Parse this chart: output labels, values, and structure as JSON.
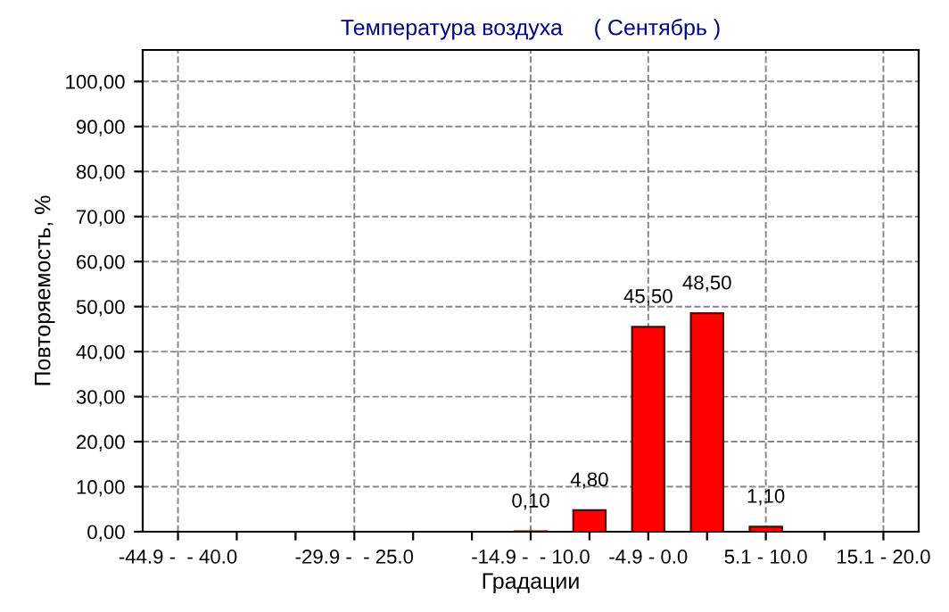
{
  "chart_data": {
    "type": "bar",
    "title": "Температура воздуха     ( Сентябрь )",
    "xlabel": "Градации",
    "ylabel": "Повторяемость, %",
    "categories": [
      "-44.9 -  - 40.0",
      null,
      null,
      "-29.9 -  - 25.0",
      null,
      null,
      "-14.9 -  - 10.0",
      null,
      "-4.9 - 0.0",
      null,
      "5.1 - 10.0",
      null,
      "15.1 - 20.0"
    ],
    "values": [
      0,
      0,
      0,
      0,
      0,
      0,
      0.1,
      4.8,
      45.5,
      48.5,
      1.1,
      0,
      0
    ],
    "value_labels": [
      null,
      null,
      null,
      null,
      null,
      null,
      "0,10",
      "4,80",
      "45,50",
      "48,50",
      "1,10",
      null,
      null
    ],
    "color": "#ff0000",
    "ylim": [
      0,
      107
    ],
    "yticks": [
      {
        "value": 0,
        "label": "0,00"
      },
      {
        "value": 10,
        "label": "10,00"
      },
      {
        "value": 20,
        "label": "20,00"
      },
      {
        "value": 30,
        "label": "30,00"
      },
      {
        "value": 40,
        "label": "40,00"
      },
      {
        "value": 50,
        "label": "50,00"
      },
      {
        "value": 60,
        "label": "60,00"
      },
      {
        "value": 70,
        "label": "70,00"
      },
      {
        "value": 80,
        "label": "80,00"
      },
      {
        "value": 90,
        "label": "90,00"
      },
      {
        "value": 100,
        "label": "100,00"
      }
    ],
    "grid": true,
    "line_style": "dashed"
  }
}
